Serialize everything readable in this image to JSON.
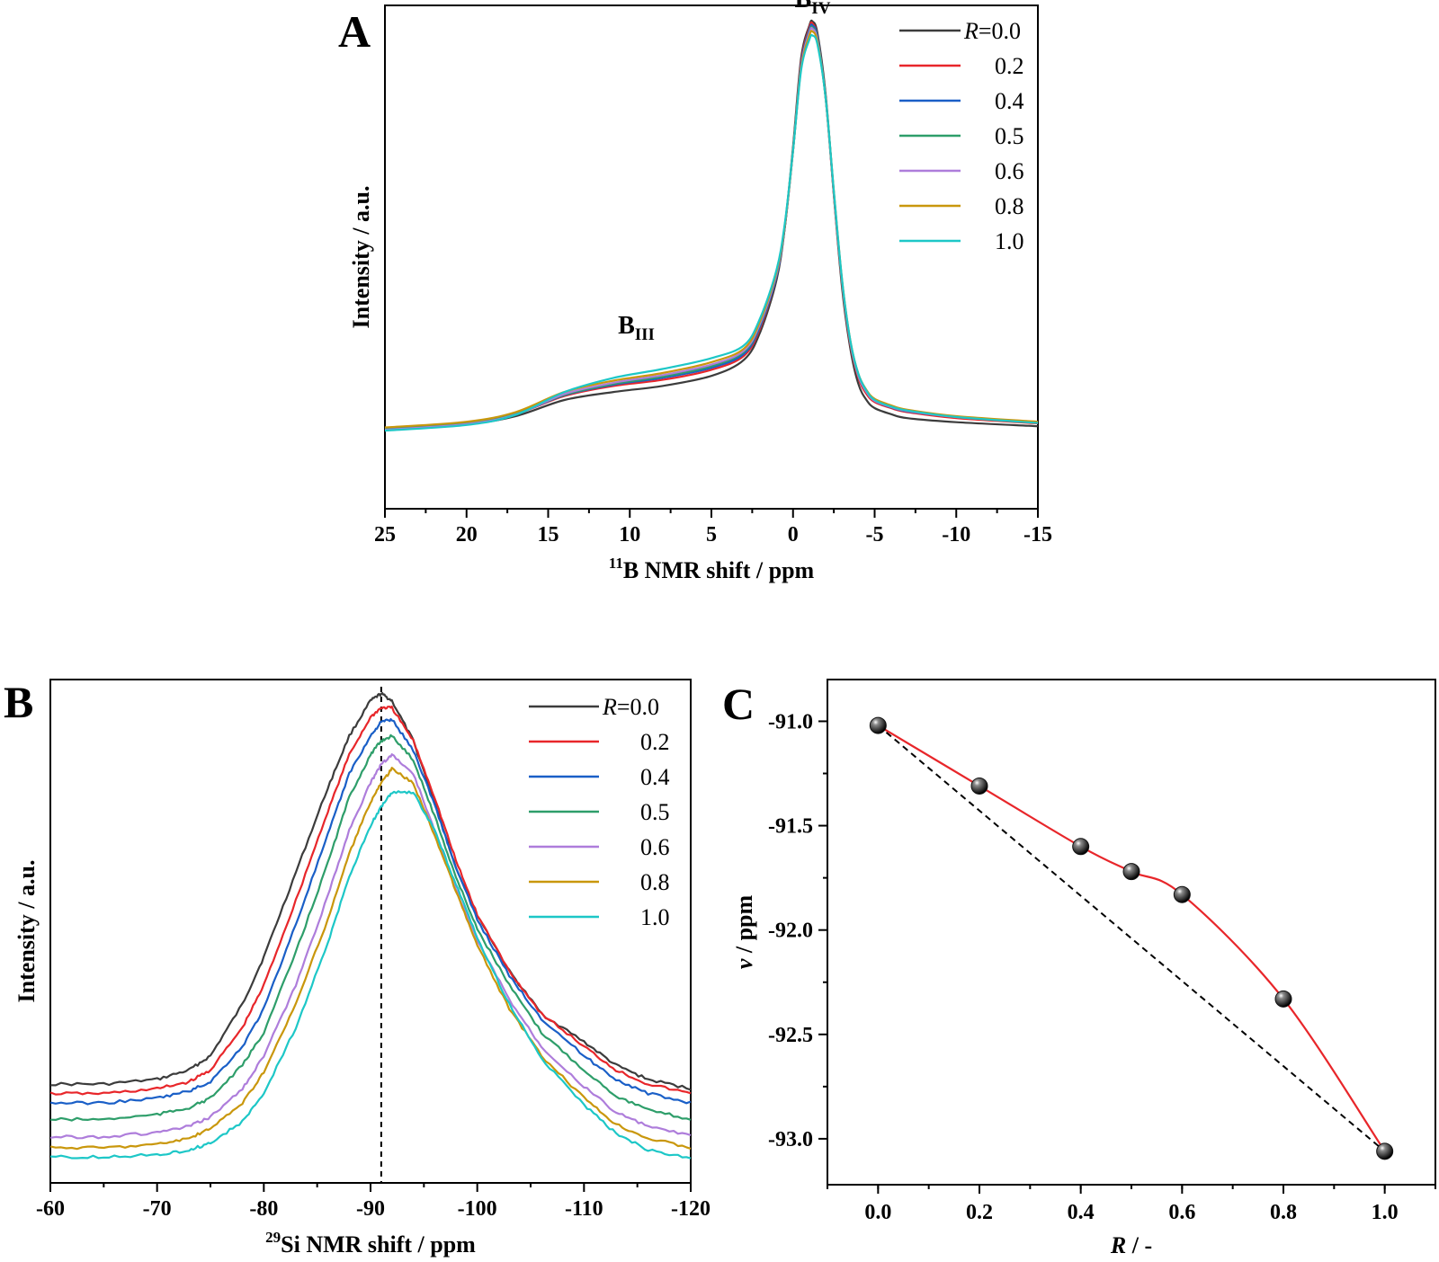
{
  "colors": {
    "0.0": "#3c3c3c",
    "0.2": "#e8262a",
    "0.4": "#1a5fc7",
    "0.5": "#2e9e6a",
    "0.6": "#ae7ddb",
    "0.8": "#c9970c",
    "1.0": "#1dc7c7"
  },
  "chart_data": [
    {
      "id": "A",
      "type": "line",
      "panel_label": "A",
      "xlabel_sup": "11",
      "xlabel_main": "B NMR shift / ppm",
      "ylabel": "Intensity / a.u.",
      "xlim": [
        25,
        -15
      ],
      "xticks": [
        25,
        20,
        15,
        10,
        5,
        0,
        -5,
        -10,
        -15
      ],
      "xtick_labels": [
        "25",
        "20",
        "15",
        "10",
        "5",
        "0",
        "-5",
        "-10",
        "-15"
      ],
      "ylim": [
        -0.2,
        1.05
      ],
      "legend": {
        "placement": "top-right",
        "prefix": "R",
        "first_label": "=0.0",
        "labels": [
          "0.2",
          "0.4",
          "0.5",
          "0.6",
          "0.8",
          "1.0"
        ]
      },
      "annotations": [
        {
          "main": "B",
          "sub": "IV",
          "x": -1.2,
          "y": 1.01
        },
        {
          "main": "B",
          "sub": "III",
          "x": 9.6,
          "y": 0.2
        }
      ],
      "series": [
        {
          "key": "0.0",
          "x": [
            25,
            20,
            17,
            14,
            11,
            8,
            5,
            3,
            2,
            1,
            0.5,
            0,
            -0.5,
            -1,
            -1.2,
            -1.5,
            -2,
            -2.5,
            -3,
            -3.5,
            -4,
            -4.5,
            -5,
            -6,
            -7,
            -10,
            -15
          ],
          "y": [
            0.0,
            0.01,
            0.03,
            0.07,
            0.09,
            0.105,
            0.13,
            0.17,
            0.24,
            0.37,
            0.5,
            0.7,
            0.92,
            1.0,
            1.01,
            0.98,
            0.83,
            0.58,
            0.35,
            0.2,
            0.11,
            0.07,
            0.05,
            0.035,
            0.025,
            0.015,
            0.005
          ]
        },
        {
          "key": "0.2",
          "x": [
            25,
            20,
            17,
            14,
            11,
            8,
            5,
            3,
            2,
            1,
            0.5,
            0,
            -0.5,
            -1,
            -1.2,
            -1.5,
            -2,
            -2.5,
            -3,
            -3.5,
            -4,
            -4.5,
            -5,
            -6,
            -7,
            -10,
            -15
          ],
          "y": [
            0.0,
            0.013,
            0.035,
            0.08,
            0.105,
            0.12,
            0.145,
            0.18,
            0.25,
            0.38,
            0.5,
            0.69,
            0.91,
            0.995,
            1.005,
            0.97,
            0.82,
            0.58,
            0.36,
            0.21,
            0.125,
            0.085,
            0.065,
            0.05,
            0.04,
            0.025,
            0.012
          ]
        },
        {
          "key": "0.4",
          "x": [
            25,
            20,
            17,
            14,
            11,
            8,
            5,
            3,
            2,
            1,
            0.5,
            0,
            -0.5,
            -1,
            -1.2,
            -1.5,
            -2,
            -2.5,
            -3,
            -3.5,
            -4,
            -4.5,
            -5,
            -6,
            -7,
            -10,
            -15
          ],
          "y": [
            -0.003,
            0.012,
            0.035,
            0.082,
            0.108,
            0.125,
            0.15,
            0.185,
            0.255,
            0.38,
            0.5,
            0.69,
            0.905,
            0.99,
            1.0,
            0.97,
            0.82,
            0.585,
            0.365,
            0.215,
            0.13,
            0.09,
            0.068,
            0.052,
            0.042,
            0.028,
            0.014
          ]
        },
        {
          "key": "0.5",
          "x": [
            25,
            20,
            17,
            14,
            11,
            8,
            5,
            3,
            2,
            1,
            0.5,
            0,
            -0.5,
            -1,
            -1.2,
            -1.5,
            -2,
            -2.5,
            -3,
            -3.5,
            -4,
            -4.5,
            -5,
            -6,
            -7,
            -10,
            -15
          ],
          "y": [
            -0.002,
            0.012,
            0.036,
            0.083,
            0.11,
            0.128,
            0.154,
            0.19,
            0.26,
            0.385,
            0.505,
            0.69,
            0.9,
            0.985,
            0.995,
            0.965,
            0.82,
            0.585,
            0.365,
            0.215,
            0.13,
            0.09,
            0.068,
            0.053,
            0.043,
            0.028,
            0.014
          ]
        },
        {
          "key": "0.6",
          "x": [
            25,
            20,
            17,
            14,
            11,
            8,
            5,
            3,
            2,
            1,
            0.5,
            0,
            -0.5,
            -1,
            -1.2,
            -1.5,
            -2,
            -2.5,
            -3,
            -3.5,
            -4,
            -4.5,
            -5,
            -6,
            -7,
            -10,
            -15
          ],
          "y": [
            -0.004,
            0.01,
            0.034,
            0.085,
            0.113,
            0.132,
            0.158,
            0.193,
            0.262,
            0.385,
            0.505,
            0.69,
            0.9,
            0.982,
            0.992,
            0.962,
            0.82,
            0.585,
            0.365,
            0.215,
            0.13,
            0.09,
            0.068,
            0.053,
            0.043,
            0.028,
            0.014
          ]
        },
        {
          "key": "0.8",
          "x": [
            25,
            20,
            17,
            14,
            11,
            8,
            5,
            3,
            2,
            1,
            0.5,
            0,
            -0.5,
            -1,
            -1.2,
            -1.5,
            -2,
            -2.5,
            -3,
            -3.5,
            -4,
            -4.5,
            -5,
            -6,
            -7,
            -10,
            -15
          ],
          "y": [
            0.002,
            0.016,
            0.04,
            0.09,
            0.118,
            0.137,
            0.164,
            0.198,
            0.268,
            0.39,
            0.505,
            0.69,
            0.895,
            0.975,
            0.985,
            0.958,
            0.82,
            0.59,
            0.37,
            0.22,
            0.135,
            0.095,
            0.073,
            0.057,
            0.046,
            0.03,
            0.016
          ]
        },
        {
          "key": "1.0",
          "x": [
            25,
            20,
            17,
            14,
            11,
            8,
            5,
            3,
            2,
            1,
            0.5,
            0,
            -0.5,
            -1,
            -1.2,
            -1.5,
            -2,
            -2.5,
            -3,
            -3.5,
            -4,
            -4.5,
            -5,
            -6,
            -7,
            -10,
            -15
          ],
          "y": [
            -0.006,
            0.008,
            0.033,
            0.09,
            0.125,
            0.147,
            0.174,
            0.206,
            0.275,
            0.395,
            0.51,
            0.69,
            0.89,
            0.965,
            0.975,
            0.952,
            0.82,
            0.59,
            0.37,
            0.22,
            0.135,
            0.093,
            0.07,
            0.054,
            0.044,
            0.028,
            0.013
          ]
        }
      ]
    },
    {
      "id": "B",
      "type": "line",
      "panel_label": "B",
      "xlabel_sup": "29",
      "xlabel_main": "Si NMR shift / ppm",
      "ylabel": "Intensity / a.u.",
      "xlim": [
        -60,
        -120
      ],
      "xticks": [
        -60,
        -70,
        -80,
        -90,
        -100,
        -110,
        -120
      ],
      "xtick_labels": [
        "-60",
        "-70",
        "-80",
        "-90",
        "-100",
        "-110",
        "-120"
      ],
      "ylim": [
        -0.05,
        1.02
      ],
      "reference_line_x": -91,
      "legend": {
        "placement": "top-right",
        "prefix": "R",
        "first_label": "=0.0",
        "labels": [
          "0.2",
          "0.4",
          "0.5",
          "0.6",
          "0.8",
          "1.0"
        ]
      },
      "series": [
        {
          "key": "0.0",
          "x": [
            -60,
            -65,
            -70,
            -73,
            -75,
            -78,
            -80,
            -83,
            -86,
            -88,
            -90,
            -91,
            -92,
            -94,
            -96,
            -98,
            -100,
            -103,
            -106,
            -110,
            -113,
            -116,
            -120
          ],
          "y": [
            0.16,
            0.16,
            0.17,
            0.19,
            0.22,
            0.33,
            0.43,
            0.61,
            0.79,
            0.9,
            0.975,
            0.99,
            0.975,
            0.89,
            0.76,
            0.62,
            0.52,
            0.4,
            0.31,
            0.25,
            0.2,
            0.17,
            0.15
          ]
        },
        {
          "key": "0.2",
          "x": [
            -60,
            -65,
            -70,
            -73,
            -75,
            -78,
            -80,
            -83,
            -86,
            -88,
            -90,
            -91,
            -92,
            -94,
            -96,
            -98,
            -100,
            -103,
            -106,
            -110,
            -113,
            -116,
            -120
          ],
          "y": [
            0.14,
            0.14,
            0.15,
            0.165,
            0.19,
            0.28,
            0.37,
            0.55,
            0.74,
            0.86,
            0.94,
            0.96,
            0.96,
            0.89,
            0.77,
            0.635,
            0.52,
            0.4,
            0.31,
            0.24,
            0.19,
            0.16,
            0.14
          ]
        },
        {
          "key": "0.4",
          "x": [
            -60,
            -65,
            -70,
            -73,
            -75,
            -78,
            -80,
            -83,
            -86,
            -88,
            -90,
            -91,
            -92,
            -94,
            -96,
            -98,
            -100,
            -103,
            -106,
            -110,
            -113,
            -116,
            -120
          ],
          "y": [
            0.12,
            0.12,
            0.13,
            0.145,
            0.165,
            0.24,
            0.32,
            0.5,
            0.69,
            0.82,
            0.9,
            0.93,
            0.935,
            0.87,
            0.755,
            0.62,
            0.51,
            0.39,
            0.3,
            0.22,
            0.17,
            0.14,
            0.12
          ]
        },
        {
          "key": "0.5",
          "x": [
            -60,
            -65,
            -70,
            -73,
            -75,
            -78,
            -80,
            -83,
            -86,
            -88,
            -90,
            -91,
            -92,
            -94,
            -96,
            -98,
            -100,
            -103,
            -106,
            -110,
            -113,
            -116,
            -120
          ],
          "y": [
            0.085,
            0.085,
            0.095,
            0.11,
            0.13,
            0.2,
            0.27,
            0.44,
            0.63,
            0.77,
            0.86,
            0.89,
            0.9,
            0.85,
            0.73,
            0.6,
            0.49,
            0.37,
            0.27,
            0.19,
            0.135,
            0.105,
            0.085
          ]
        },
        {
          "key": "0.6",
          "x": [
            -60,
            -65,
            -70,
            -73,
            -75,
            -78,
            -80,
            -83,
            -86,
            -88,
            -90,
            -91,
            -92,
            -94,
            -96,
            -98,
            -100,
            -103,
            -106,
            -110,
            -113,
            -116,
            -120
          ],
          "y": [
            0.048,
            0.048,
            0.057,
            0.07,
            0.09,
            0.15,
            0.22,
            0.37,
            0.56,
            0.7,
            0.8,
            0.84,
            0.86,
            0.82,
            0.7,
            0.575,
            0.465,
            0.34,
            0.24,
            0.155,
            0.1,
            0.07,
            0.05
          ]
        },
        {
          "key": "0.8",
          "x": [
            -60,
            -65,
            -70,
            -73,
            -75,
            -78,
            -80,
            -83,
            -86,
            -88,
            -90,
            -91,
            -92,
            -94,
            -96,
            -98,
            -100,
            -103,
            -106,
            -110,
            -113,
            -116,
            -120
          ],
          "y": [
            0.025,
            0.025,
            0.032,
            0.045,
            0.065,
            0.12,
            0.185,
            0.33,
            0.51,
            0.65,
            0.76,
            0.8,
            0.83,
            0.8,
            0.69,
            0.57,
            0.455,
            0.32,
            0.22,
            0.13,
            0.075,
            0.045,
            0.025
          ]
        },
        {
          "key": "1.0",
          "x": [
            -60,
            -65,
            -70,
            -73,
            -75,
            -78,
            -80,
            -83,
            -86,
            -88,
            -90,
            -91,
            -92,
            -94,
            -96,
            -98,
            -100,
            -103,
            -106,
            -110,
            -113,
            -116,
            -120
          ],
          "y": [
            0.005,
            0.005,
            0.01,
            0.02,
            0.035,
            0.08,
            0.14,
            0.28,
            0.46,
            0.6,
            0.71,
            0.75,
            0.78,
            0.78,
            0.7,
            0.585,
            0.47,
            0.33,
            0.215,
            0.115,
            0.055,
            0.02,
            0.002
          ]
        }
      ]
    },
    {
      "id": "C",
      "type": "scatter",
      "panel_label": "C",
      "xlabel_main": "R",
      "xlabel_suffix": " / -",
      "ylabel_symbol": "v",
      "ylabel_suffix": " / ppm",
      "xlim": [
        -0.1,
        1.1
      ],
      "ylim": [
        -93.22,
        -90.8
      ],
      "xticks": [
        0.0,
        0.2,
        0.4,
        0.6,
        0.8,
        1.0
      ],
      "xtick_labels": [
        "0.0",
        "0.2",
        "0.4",
        "0.6",
        "0.8",
        "1.0"
      ],
      "yticks": [
        -91.0,
        -91.5,
        -92.0,
        -92.5,
        -93.0
      ],
      "ytick_labels": [
        "-91.0",
        "-91.5",
        "-92.0",
        "-92.5",
        "-93.0"
      ],
      "points": {
        "x": [
          0.0,
          0.2,
          0.4,
          0.5,
          0.6,
          0.8,
          1.0
        ],
        "y": [
          -91.02,
          -91.31,
          -91.6,
          -91.72,
          -91.83,
          -92.33,
          -93.06
        ]
      },
      "reference_line": {
        "x": [
          0.0,
          1.0
        ],
        "y": [
          -91.02,
          -93.06
        ]
      },
      "colors": {
        "fit": "#e8262a",
        "reference": "#000000",
        "points": "#111111"
      }
    }
  ]
}
